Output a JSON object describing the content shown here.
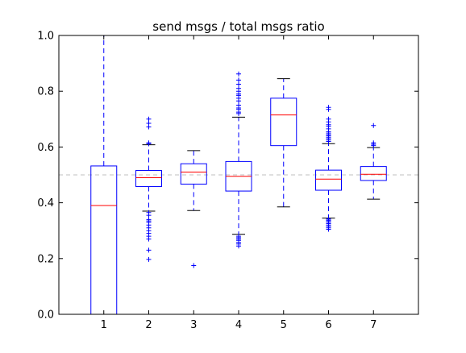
{
  "chart_data": {
    "type": "box",
    "title": "send msgs / total msgs ratio",
    "xlabel": "",
    "ylabel": "",
    "ylim": [
      0.0,
      1.0
    ],
    "y_ticks": [
      0.0,
      0.2,
      0.4,
      0.6,
      0.8,
      1.0
    ],
    "y_tick_labels": [
      "0.0",
      "0.2",
      "0.4",
      "0.6",
      "0.8",
      "1.0"
    ],
    "categories": [
      "1",
      "2",
      "3",
      "4",
      "5",
      "6",
      "7"
    ],
    "reference_line": 0.5,
    "grid": false,
    "boxes": [
      {
        "category": "1",
        "whisker_low": 0.0,
        "q1": 0.0,
        "median": 0.39,
        "q3": 0.532,
        "whisker_high": 1.0,
        "outliers": []
      },
      {
        "category": "2",
        "whisker_low": 0.37,
        "q1": 0.458,
        "median": 0.49,
        "q3": 0.516,
        "whisker_high": 0.608,
        "outliers": [
          0.7,
          0.685,
          0.672,
          0.615,
          0.612,
          0.365,
          0.355,
          0.34,
          0.335,
          0.33,
          0.32,
          0.31,
          0.3,
          0.29,
          0.28,
          0.27,
          0.23,
          0.197
        ]
      },
      {
        "category": "3",
        "whisker_low": 0.372,
        "q1": 0.467,
        "median": 0.51,
        "q3": 0.54,
        "whisker_high": 0.587,
        "outliers": [
          0.175
        ]
      },
      {
        "category": "4",
        "whisker_low": 0.287,
        "q1": 0.442,
        "median": 0.495,
        "q3": 0.548,
        "whisker_high": 0.707,
        "outliers": [
          0.862,
          0.84,
          0.825,
          0.81,
          0.8,
          0.79,
          0.785,
          0.775,
          0.765,
          0.75,
          0.74,
          0.735,
          0.725,
          0.72,
          0.28,
          0.275,
          0.27,
          0.265,
          0.258,
          0.252,
          0.245
        ]
      },
      {
        "category": "5",
        "whisker_low": 0.385,
        "q1": 0.605,
        "median": 0.715,
        "q3": 0.775,
        "whisker_high": 0.845,
        "outliers": []
      },
      {
        "category": "6",
        "whisker_low": 0.345,
        "q1": 0.445,
        "median": 0.485,
        "q3": 0.517,
        "whisker_high": 0.612,
        "outliers": [
          0.742,
          0.735,
          0.7,
          0.69,
          0.68,
          0.675,
          0.665,
          0.655,
          0.65,
          0.645,
          0.64,
          0.635,
          0.63,
          0.625,
          0.62,
          0.342,
          0.338,
          0.335,
          0.33,
          0.325,
          0.32,
          0.315,
          0.31,
          0.305
        ]
      },
      {
        "category": "7",
        "whisker_low": 0.413,
        "q1": 0.48,
        "median": 0.502,
        "q3": 0.53,
        "whisker_high": 0.598,
        "outliers": [
          0.677,
          0.615,
          0.61,
          0.605
        ]
      }
    ],
    "colors": {
      "box": "#0000ff",
      "whisker": "#0000ff",
      "median": "#ff0000",
      "cap": "#000000",
      "outlier": "#0000ff",
      "reference_line": "#bfbfbf",
      "axes": "#000000"
    }
  }
}
